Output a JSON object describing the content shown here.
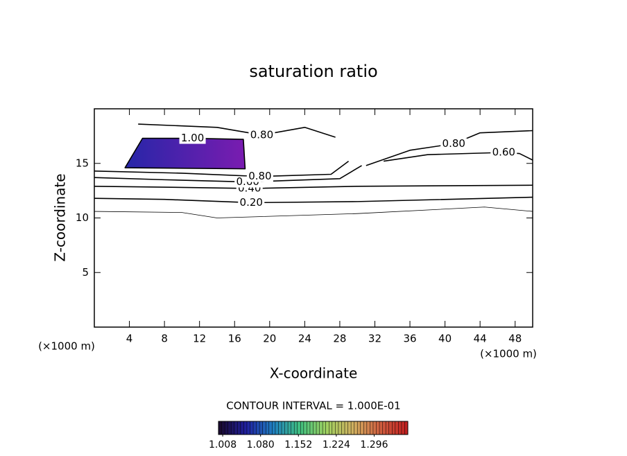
{
  "chart_data": {
    "type": "contour",
    "title": "saturation ratio",
    "xlabel": "X-coordinate",
    "ylabel": "Z-coordinate",
    "x_unit": "(×1000 m)",
    "y_unit": "(×1000 m)",
    "note": "CONTOUR INTERVAL = 1.000E-01",
    "xlim": [
      0,
      50
    ],
    "ylim": [
      0,
      20
    ],
    "xticks": [
      4,
      8,
      12,
      16,
      20,
      24,
      28,
      32,
      36,
      40,
      44,
      48
    ],
    "yticks": [
      5,
      10,
      15
    ],
    "line_color": "#000000",
    "contours": [
      {
        "level": 0.1,
        "x": [
          0,
          10,
          14,
          30,
          44.5,
          50
        ],
        "y": [
          10.6,
          10.5,
          10.0,
          10.4,
          11.0,
          10.6
        ]
      },
      {
        "level": 0.2,
        "label": "0.20",
        "x": [
          0,
          8,
          17.9,
          30,
          50
        ],
        "y": [
          11.8,
          11.7,
          11.4,
          11.5,
          11.9
        ]
      },
      {
        "level": 0.4,
        "label": "0.40",
        "x": [
          0,
          10,
          17.7,
          30,
          50
        ],
        "y": [
          12.9,
          12.8,
          12.7,
          12.9,
          13.0
        ]
      },
      {
        "level": 0.6,
        "label": "0.60",
        "x": [
          0,
          8,
          17.5,
          28,
          30.5
        ],
        "y": [
          13.7,
          13.5,
          13.3,
          13.6,
          14.8
        ]
      },
      {
        "level": 0.6,
        "label": "0.60",
        "x": [
          33,
          38,
          46.7,
          48.5,
          50
        ],
        "y": [
          15.2,
          15.8,
          16.0,
          15.9,
          15.3
        ]
      },
      {
        "level": 0.8,
        "label": "0.80",
        "x": [
          0,
          10,
          18.9,
          27,
          29
        ],
        "y": [
          14.3,
          14.1,
          13.8,
          14.0,
          15.2
        ]
      },
      {
        "level": 0.8,
        "label": "0.80",
        "x": [
          31,
          36,
          41,
          44,
          50
        ],
        "y": [
          14.8,
          16.2,
          16.8,
          17.8,
          18.0
        ]
      },
      {
        "level": 0.8,
        "label": "0.80",
        "x": [
          5,
          14,
          19.1,
          24,
          27.5
        ],
        "y": [
          18.6,
          18.3,
          17.6,
          18.3,
          17.4
        ]
      },
      {
        "level": 1.0,
        "label": "1.00",
        "closed": true,
        "x": [
          3.5,
          5.5,
          11.2,
          17,
          17.2
        ],
        "y": [
          14.6,
          17.3,
          17.3,
          17.2,
          14.5
        ]
      }
    ],
    "filled_region": {
      "x": [
        3.5,
        5.5,
        11.2,
        17,
        17.2
      ],
      "y": [
        14.6,
        17.3,
        17.3,
        17.2,
        14.5
      ],
      "colors": [
        "#2626a8",
        "#7a1cb0"
      ]
    },
    "colorbar": {
      "clim": [
        1.0,
        1.36
      ],
      "colors": [
        "#1a0a30",
        "#2020a0",
        "#2080c0",
        "#40c080",
        "#a0d060",
        "#d0b060",
        "#d06040",
        "#c02020"
      ],
      "ticks": [
        1.008,
        {
          "value": 1.08,
          "label": "1.080"
        },
        1.152,
        1.224,
        1.296
      ]
    }
  }
}
